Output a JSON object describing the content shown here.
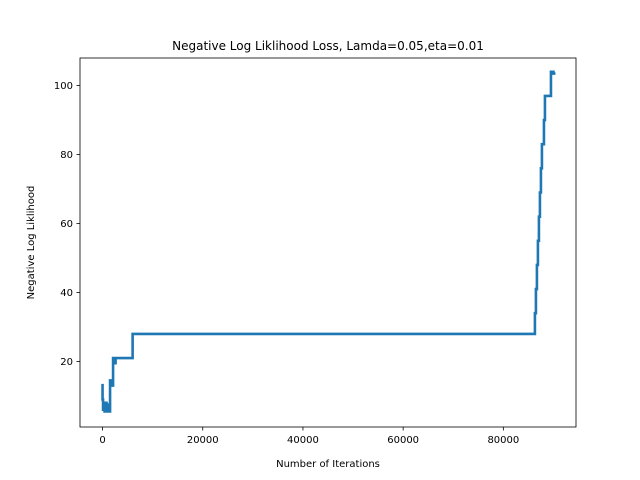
{
  "chart_data": {
    "type": "line",
    "title": "Negative Log Liklihood Loss, Lamda=0.05,eta=0.01",
    "xlabel": "Number of Iterations",
    "ylabel": "Negative Log Liklihood",
    "xlim": [
      -4500,
      94500
    ],
    "ylim": [
      1,
      108
    ],
    "xticks": [
      0,
      20000,
      40000,
      60000,
      80000
    ],
    "xtick_labels": [
      "0",
      "20000",
      "40000",
      "60000",
      "80000"
    ],
    "yticks": [
      20,
      40,
      60,
      80,
      100
    ],
    "ytick_labels": [
      "20",
      "40",
      "60",
      "80",
      "100"
    ],
    "grid": false,
    "legend": "none",
    "line_color": "#1f77b4",
    "series": [
      {
        "x": [
          0,
          0,
          100,
          100,
          200,
          200,
          400,
          400,
          600,
          600,
          800,
          800,
          1000,
          1000,
          1200,
          1200,
          1500,
          1500,
          1800,
          1800,
          2100,
          2100,
          2300,
          2300,
          2600,
          2600,
          6000,
          6000,
          86300,
          86300,
          86500,
          86500,
          86700,
          86700,
          86900,
          86900,
          87100,
          87100,
          87300,
          87300,
          87500,
          87500,
          87700,
          87700,
          87900,
          87900,
          88100,
          88100,
          88300,
          88300,
          88500,
          88500,
          89000,
          89000,
          89500,
          89500,
          90000,
          90000,
          90400
        ],
        "y": [
          13.5,
          9,
          9,
          6,
          6,
          8,
          8,
          5.5,
          5.5,
          8,
          8,
          5.5,
          5.5,
          7.5,
          7.5,
          5.5,
          5.5,
          14.5,
          14.5,
          13,
          13,
          21,
          21,
          19.5,
          19.5,
          21,
          21,
          28,
          28,
          34,
          34,
          41,
          41,
          48,
          48,
          55,
          55,
          62,
          62,
          69,
          69,
          76,
          76,
          83,
          83,
          83,
          83,
          90,
          90,
          97,
          97,
          97,
          97,
          97,
          97,
          104,
          104,
          103.5,
          103.5
        ]
      }
    ]
  }
}
